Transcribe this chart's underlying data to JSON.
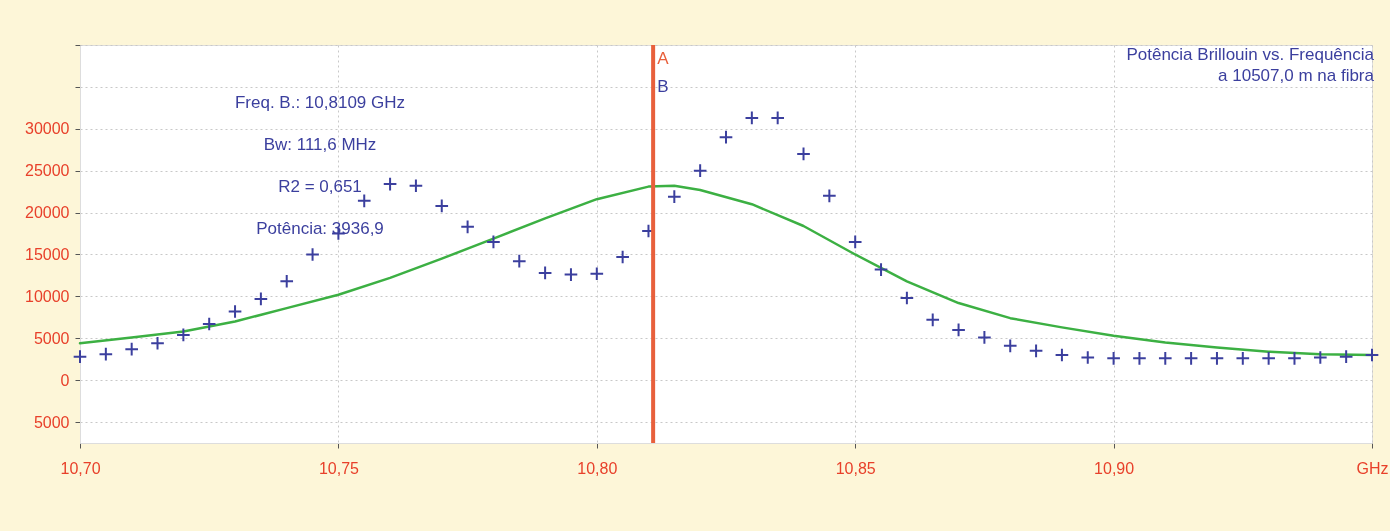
{
  "chart_data": {
    "type": "scatter",
    "title": "Potência Brillouin vs. Frequência",
    "subtitle": "a 10507,0 m na fibra",
    "xlim": [
      10.7,
      10.95
    ],
    "xticks": [
      {
        "value": 10.7,
        "label": "10,70"
      },
      {
        "value": 10.75,
        "label": "10,75"
      },
      {
        "value": 10.8,
        "label": "10,80"
      },
      {
        "value": 10.85,
        "label": "10,85"
      },
      {
        "value": 10.9,
        "label": "10,90"
      },
      {
        "value": 10.95,
        "label": "GHz"
      }
    ],
    "ylim": [
      -7500,
      40000
    ],
    "yticks": [
      {
        "value": 40000,
        "label": null
      },
      {
        "value": 35000,
        "label": null
      },
      30000,
      25000,
      20000,
      15000,
      10000,
      5000,
      0,
      {
        "value": -5000,
        "label": "5000"
      }
    ],
    "grid": true,
    "series": [
      {
        "type": "scatter",
        "marker": "cross",
        "color": "#3b3f9e",
        "x": [
          10.7,
          10.705,
          10.71,
          10.715,
          10.72,
          10.725,
          10.73,
          10.735,
          10.74,
          10.745,
          10.75,
          10.755,
          10.76,
          10.765,
          10.77,
          10.775,
          10.78,
          10.785,
          10.79,
          10.795,
          10.8,
          10.805,
          10.81,
          10.815,
          10.82,
          10.825,
          10.83,
          10.835,
          10.84,
          10.845,
          10.85,
          10.855,
          10.86,
          10.865,
          10.87,
          10.875,
          10.88,
          10.885,
          10.89,
          10.895,
          10.9,
          10.905,
          10.91,
          10.915,
          10.92,
          10.925,
          10.93,
          10.935,
          10.94,
          10.945,
          10.95
        ],
        "values": [
          2800,
          3100,
          3700,
          4400,
          5400,
          6700,
          8200,
          9700,
          11800,
          15000,
          17500,
          21400,
          23400,
          23200,
          20800,
          18300,
          16500,
          14200,
          12800,
          12600,
          12700,
          14700,
          17800,
          21900,
          25000,
          29000,
          31300,
          31300,
          27000,
          22000,
          16500,
          13200,
          9800,
          7200,
          6000,
          5100,
          4100,
          3500,
          3000,
          2700,
          2600,
          2600,
          2600,
          2600,
          2600,
          2600,
          2600,
          2600,
          2700,
          2800,
          3000
        ]
      },
      {
        "type": "line",
        "color": "#3cb043",
        "x": [
          10.7,
          10.71,
          10.72,
          10.73,
          10.74,
          10.75,
          10.76,
          10.77,
          10.78,
          10.79,
          10.8,
          10.81,
          10.815,
          10.82,
          10.83,
          10.84,
          10.85,
          10.86,
          10.87,
          10.88,
          10.89,
          10.9,
          10.91,
          10.92,
          10.93,
          10.94,
          10.95
        ],
        "values": [
          4400,
          5100,
          5800,
          7000,
          8600,
          10200,
          12200,
          14500,
          16900,
          19300,
          21600,
          23100,
          23200,
          22700,
          21000,
          18400,
          15000,
          11800,
          9200,
          7400,
          6300,
          5300,
          4500,
          3900,
          3400,
          3100,
          3000
        ]
      }
    ],
    "ref_lines": [
      {
        "axis": "x",
        "value": 10.8109,
        "label": "A",
        "color": "#e8603c"
      }
    ],
    "annotations": [
      "Freq. B.: 10,8109 GHz",
      "Bw: 111,6 MHz",
      "R2 = 0,651",
      "Potência: 3936,9",
      {
        "text": "B",
        "x": 10.8109,
        "y": 35000
      }
    ]
  }
}
